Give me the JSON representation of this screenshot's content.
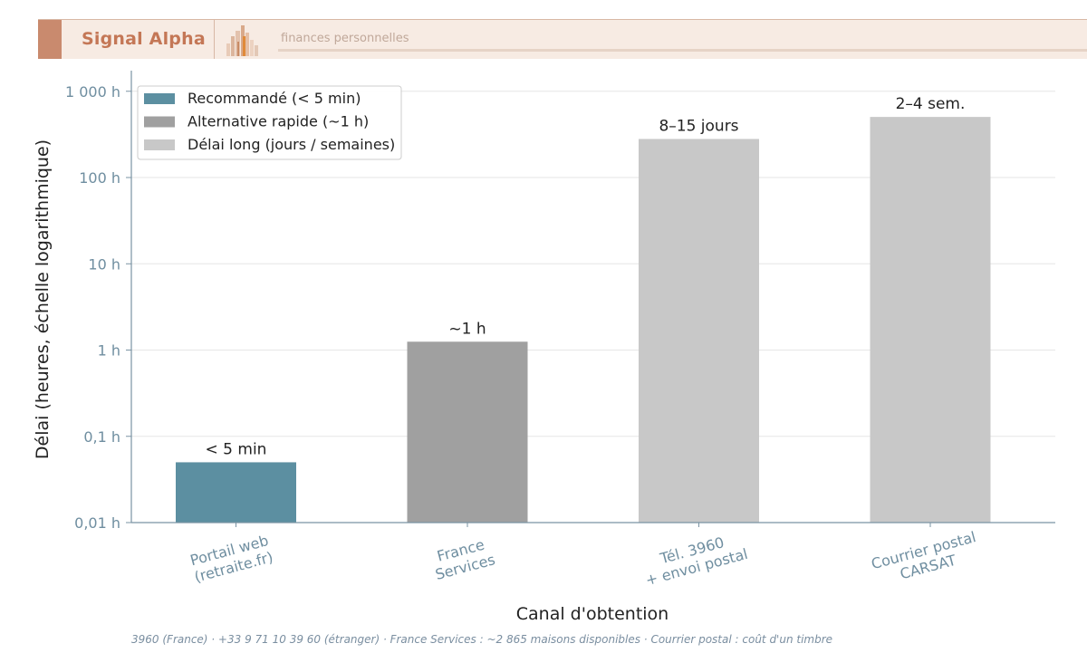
{
  "header": {
    "brand": "Signal Alpha",
    "tagline": "finances personnelles",
    "colors": {
      "banner_bg": "#f7ebe3",
      "accent": "#c98a6e",
      "brand_text": "#c47756"
    }
  },
  "chart_data": {
    "type": "bar",
    "xlabel": "Canal d'obtention",
    "ylabel": "Délai (heures, échelle logarithmique)",
    "yscale": "log",
    "ylim": [
      0.01,
      1500
    ],
    "yticks": [
      {
        "value": 0.01,
        "label": "0,01 h"
      },
      {
        "value": 0.1,
        "label": "0,1 h"
      },
      {
        "value": 1,
        "label": "1 h"
      },
      {
        "value": 10,
        "label": "10 h"
      },
      {
        "value": 100,
        "label": "100 h"
      },
      {
        "value": 1000,
        "label": "1 000 h"
      }
    ],
    "grid": true,
    "legend_position": "top-left",
    "legend": [
      {
        "label": "Recommandé (< 5 min)",
        "color": "#5c8fa1"
      },
      {
        "label": "Alternative rapide (~1 h)",
        "color": "#a0a0a0"
      },
      {
        "label": "Délai long (jours / semaines)",
        "color": "#c8c8c8"
      }
    ],
    "bars": [
      {
        "category": "Portail web\n(retraite.fr)",
        "value": 0.05,
        "label": "< 5 min",
        "legend_index": 0
      },
      {
        "category": "France\nServices",
        "value": 1.25,
        "label": "~1 h",
        "legend_index": 1
      },
      {
        "category": "Tél. 3960\n+ envoi postal",
        "value": 280,
        "label": "8–15 jours",
        "legend_index": 2
      },
      {
        "category": "Courrier postal\nCARSAT",
        "value": 504,
        "label": "2–4 sem.",
        "legend_index": 2
      }
    ]
  },
  "footnote": "3960 (France) · +33 9 71 10 39 60 (étranger) · France Services : ~2 865 maisons disponibles · Courrier postal : coût d'un timbre"
}
